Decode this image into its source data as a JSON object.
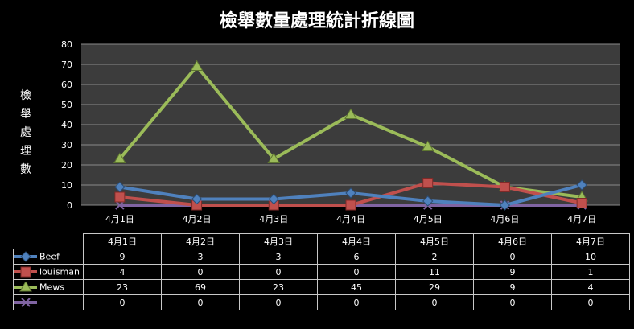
{
  "chart_data": {
    "type": "line",
    "title": "檢舉數量處理統計折線圖",
    "ylabel": "檢舉處理數",
    "categories": [
      "4月1日",
      "4月2日",
      "4月3日",
      "4月4日",
      "4月5日",
      "4月6日",
      "4月7日"
    ],
    "ylim": [
      0,
      80
    ],
    "yticks": [
      0,
      10,
      20,
      30,
      40,
      50,
      60,
      70,
      80
    ],
    "grid": true,
    "legend": "data-table",
    "series": [
      {
        "name": "Beef",
        "values": [
          9,
          3,
          3,
          6,
          2,
          0,
          10
        ],
        "color": "#4f81bd",
        "marker": "diamond"
      },
      {
        "name": "louisman",
        "values": [
          4,
          0,
          0,
          0,
          11,
          9,
          1
        ],
        "color": "#c0504d",
        "marker": "square"
      },
      {
        "name": "Mews",
        "values": [
          23,
          69,
          23,
          45,
          29,
          9,
          4
        ],
        "color": "#9bbb59",
        "marker": "triangle"
      },
      {
        "name": "",
        "values": [
          0,
          0,
          0,
          0,
          0,
          0,
          0
        ],
        "color": "#8064a2",
        "marker": "x"
      }
    ]
  }
}
